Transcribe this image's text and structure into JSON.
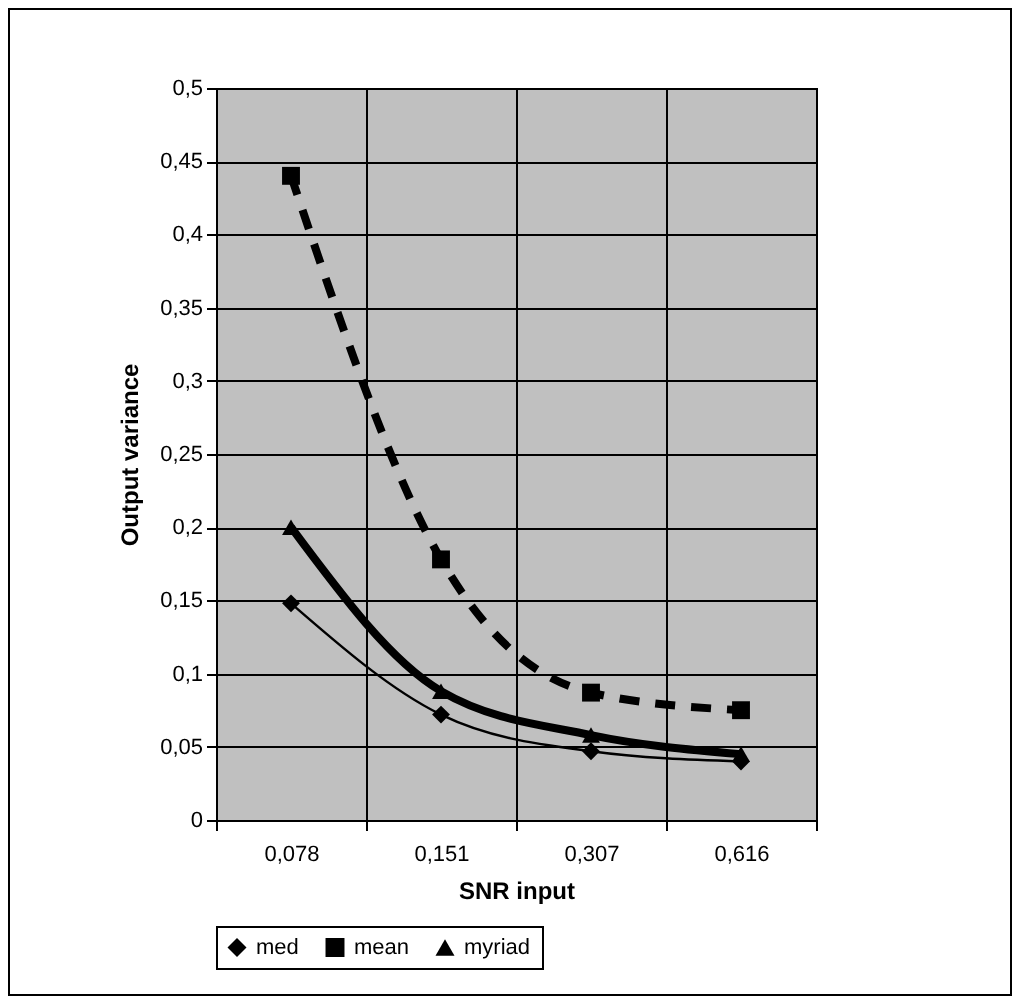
{
  "chart_data": {
    "type": "line",
    "xlabel": "SNR input",
    "ylabel": "Output variance",
    "categories": [
      "0,078",
      "0,151",
      "0,307",
      "0,616"
    ],
    "series": [
      {
        "name": "med",
        "color": "#000000",
        "marker": "diamond",
        "line_style": "solid",
        "values": [
          0.148,
          0.072,
          0.047,
          0.04
        ]
      },
      {
        "name": "mean",
        "color": "#000000",
        "marker": "square",
        "line_style": "dashed",
        "values": [
          0.44,
          0.178,
          0.087,
          0.075
        ]
      },
      {
        "name": "myriad",
        "color": "#000000",
        "marker": "triangle",
        "line_style": "solid",
        "values": [
          0.2,
          0.088,
          0.058,
          0.045
        ]
      }
    ],
    "ylim": [
      0,
      0.5
    ],
    "yticks": [
      0,
      {
        "value": 0.05,
        "label": "0,05"
      },
      {
        "value": 0.1,
        "label": "0,1"
      },
      {
        "value": 0.15,
        "label": "0,15"
      },
      {
        "value": 0.2,
        "label": "0,2"
      },
      {
        "value": 0.25,
        "label": "0,25"
      },
      {
        "value": 0.3,
        "label": "0,3"
      },
      {
        "value": 0.35,
        "label": "0,35"
      },
      {
        "value": 0.4,
        "label": "0,4"
      },
      {
        "value": 0.45,
        "label": "0,45"
      },
      {
        "value": 0.5,
        "label": "0,5"
      }
    ],
    "grid": true,
    "legend": "bottom"
  }
}
